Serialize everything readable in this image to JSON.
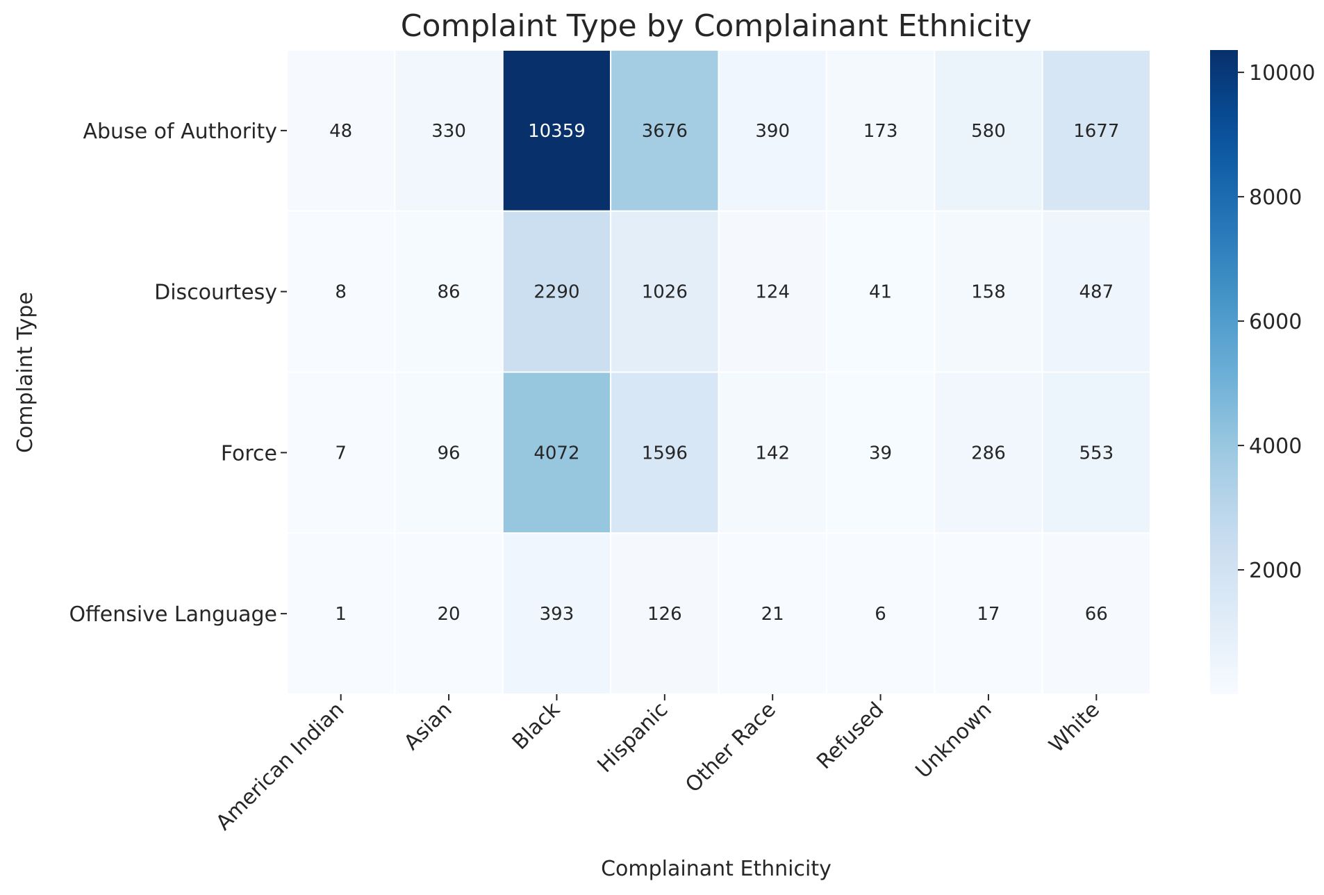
{
  "chart_data": {
    "type": "heatmap",
    "title": "Complaint Type by Complainant Ethnicity",
    "xlabel": "Complainant Ethnicity",
    "ylabel": "Complaint Type",
    "x_categories": [
      "American Indian",
      "Asian",
      "Black",
      "Hispanic",
      "Other Race",
      "Refused",
      "Unknown",
      "White"
    ],
    "y_categories": [
      "Abuse of Authority",
      "Discourtesy",
      "Force",
      "Offensive Language"
    ],
    "values": [
      [
        48,
        330,
        10359,
        3676,
        390,
        173,
        580,
        1677
      ],
      [
        8,
        86,
        2290,
        1026,
        124,
        41,
        158,
        487
      ],
      [
        7,
        96,
        4072,
        1596,
        142,
        39,
        286,
        553
      ],
      [
        1,
        20,
        393,
        126,
        21,
        6,
        17,
        66
      ]
    ],
    "colormap": "Blues",
    "colorbar": {
      "min": 1,
      "max": 10359,
      "ticks": [
        2000,
        4000,
        6000,
        8000,
        10000
      ]
    },
    "colors": {
      "text": "#262626",
      "cell_text_dark": "#262626",
      "cell_text_light": "#ffffff",
      "grid_line": "#ffffff"
    }
  }
}
